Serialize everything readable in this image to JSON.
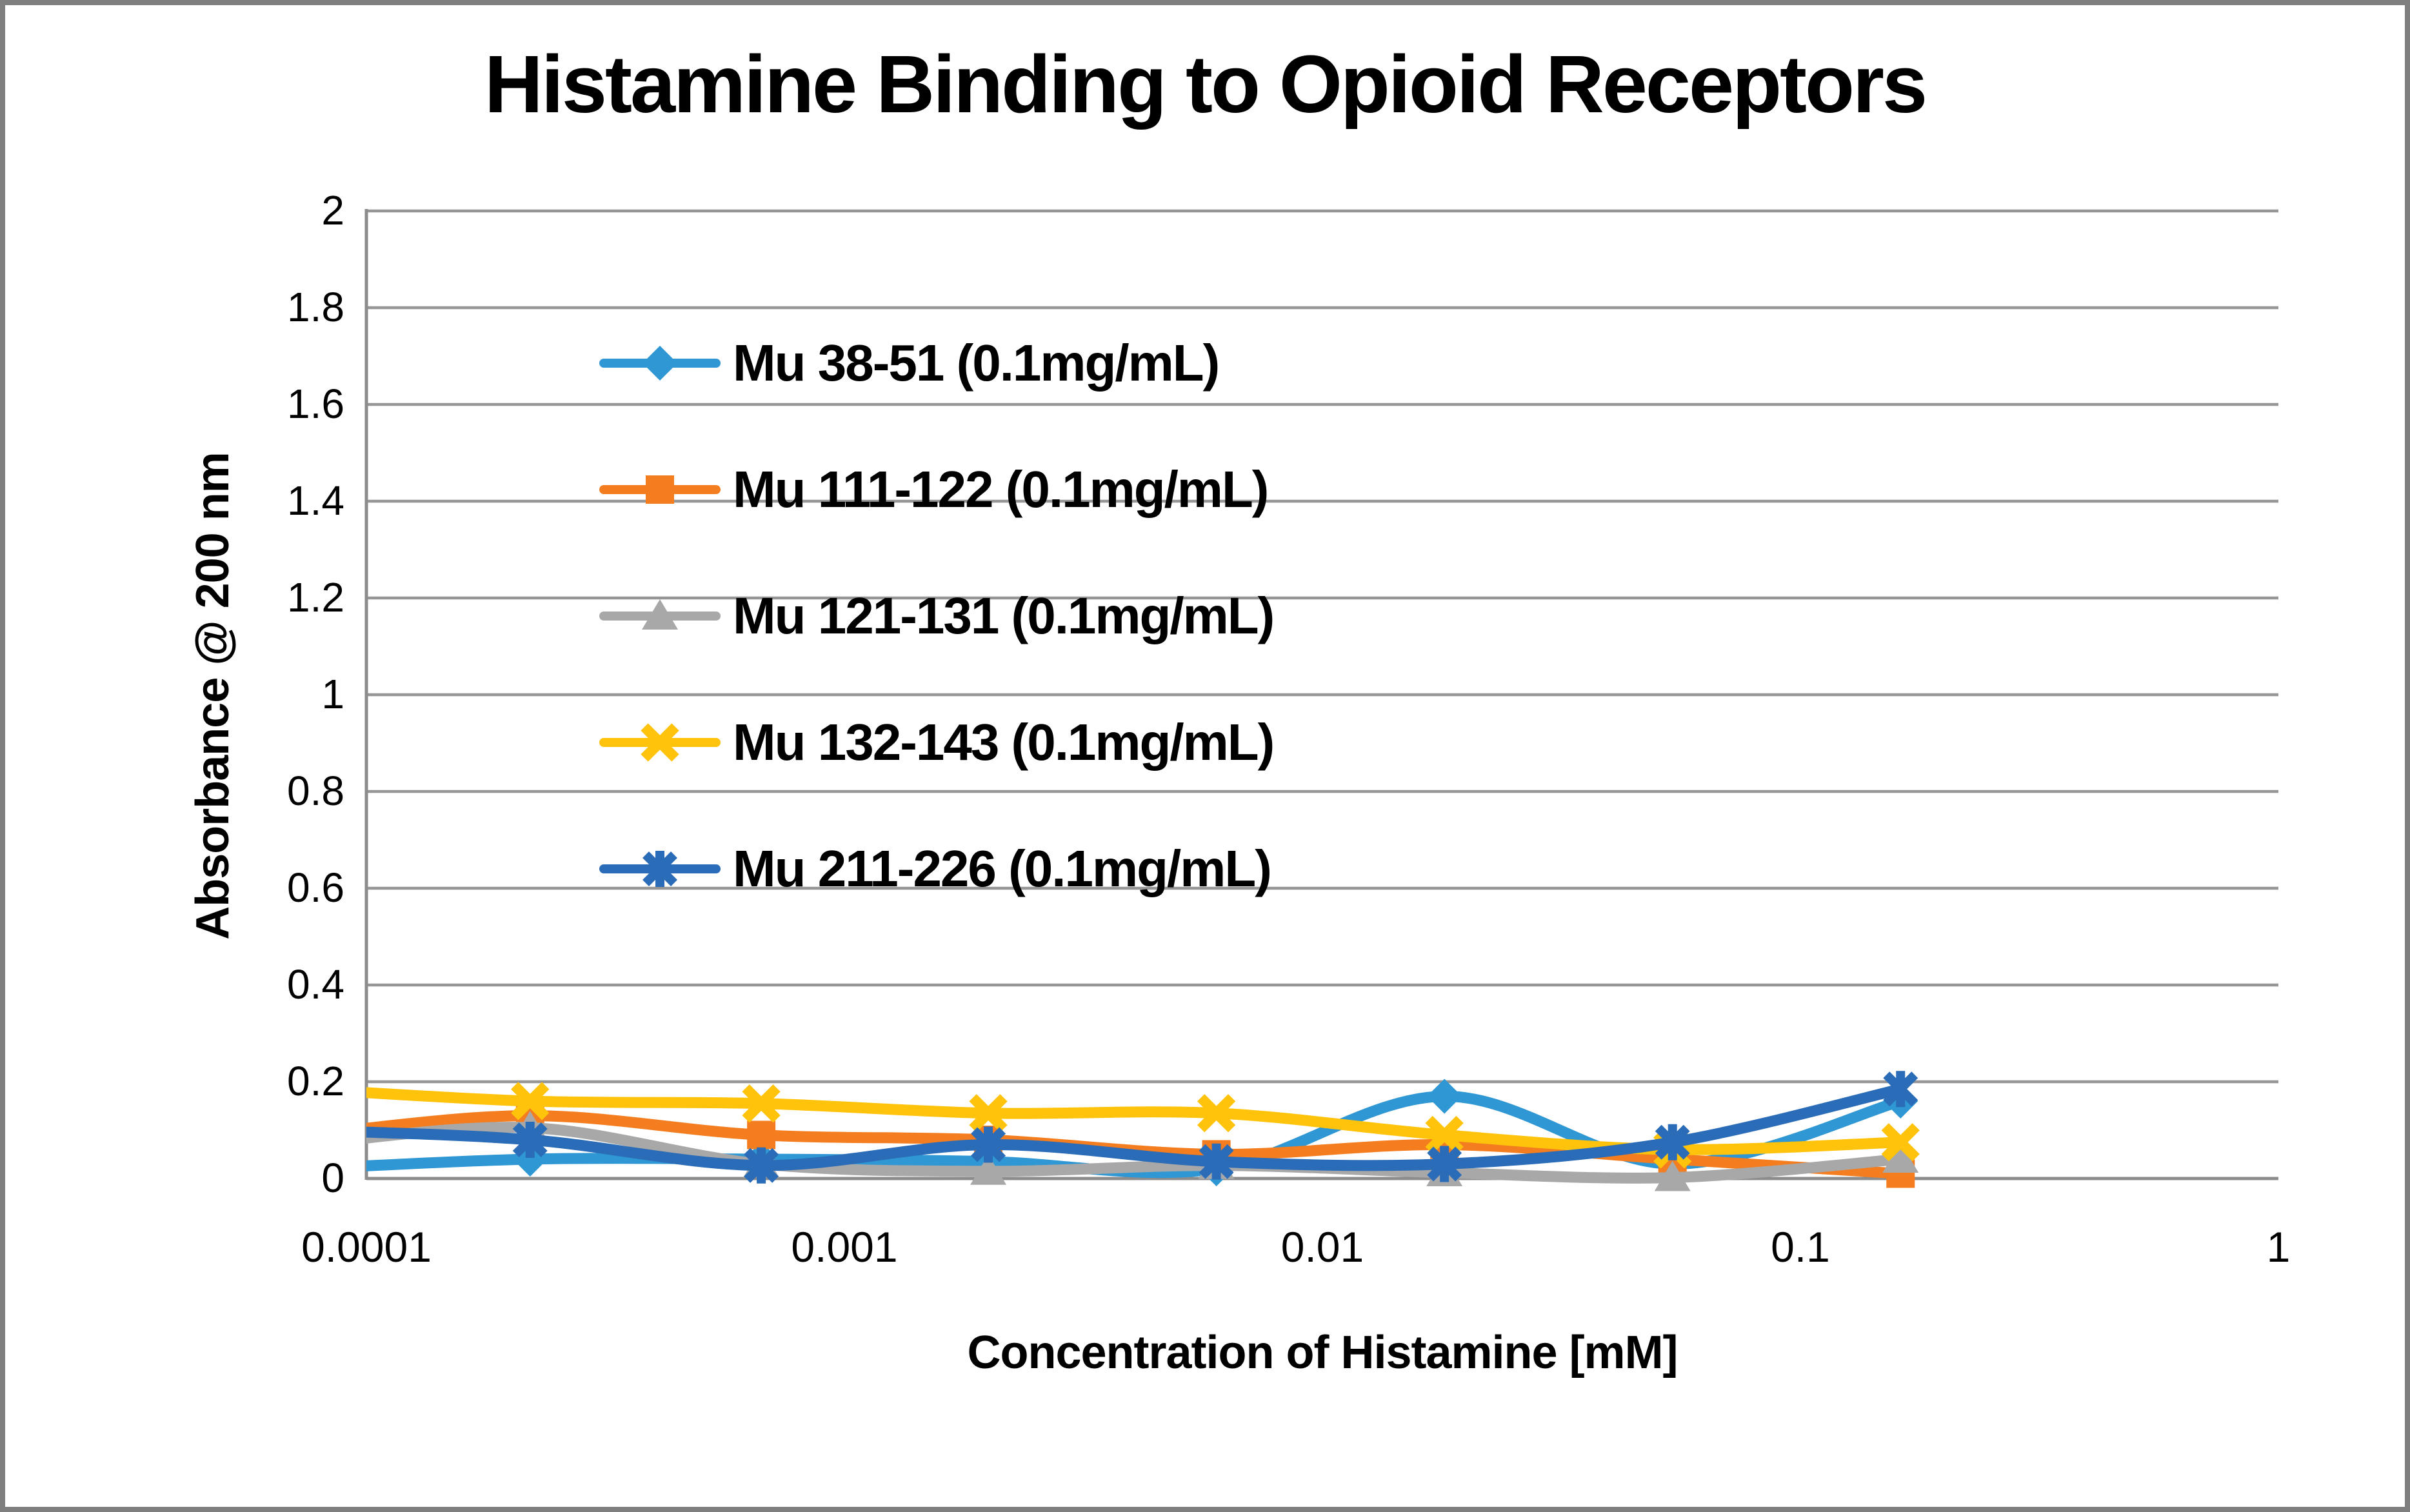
{
  "chart_data": {
    "type": "line",
    "title": "Histamine Binding to Opioid Receptors",
    "xlabel": "Concentration of Histamine [mM]",
    "ylabel": "Absorbance @ 200 nm",
    "x_scale": "log",
    "xlim": [
      0.0001,
      1
    ],
    "ylim": [
      0,
      2
    ],
    "grid": "horizontal",
    "legend_position": "inside-upper-left",
    "x_tick_labels": [
      "0.0001",
      "0.001",
      "0.01",
      "0.1",
      "1"
    ],
    "y_tick_labels": [
      "0",
      "0.2",
      "0.4",
      "0.6",
      "0.8",
      "1",
      "1.2",
      "1.4",
      "1.6",
      "1.8",
      "2"
    ],
    "x": [
      7.5e-05,
      0.00022,
      0.00067,
      0.002,
      0.006,
      0.018,
      0.054,
      0.162
    ],
    "series": [
      {
        "name": "Mu 38-51 (0.1mg/mL)",
        "marker": "diamond",
        "color": "#2E97D4",
        "values": [
          0.02,
          0.04,
          0.04,
          0.035,
          0.02,
          0.17,
          0.03,
          0.16
        ]
      },
      {
        "name": "Mu 111-122 (0.1mg/mL)",
        "marker": "square",
        "color": "#F47D20",
        "values": [
          0.09,
          0.13,
          0.09,
          0.08,
          0.05,
          0.07,
          0.04,
          0.01
        ]
      },
      {
        "name": "Mu 121-131 (0.1mg/mL)",
        "marker": "triangle",
        "color": "#A8A8A8",
        "values": [
          0.07,
          0.105,
          0.03,
          0.015,
          0.027,
          0.012,
          0.002,
          0.04
        ]
      },
      {
        "name": "Mu 132-143 (0.1mg/mL)",
        "marker": "x",
        "color": "#FFC30B",
        "values": [
          0.185,
          0.16,
          0.155,
          0.135,
          0.135,
          0.09,
          0.06,
          0.075
        ]
      },
      {
        "name": "Mu 211-226 (0.1mg/mL)",
        "marker": "asterisk",
        "color": "#2B6CB8",
        "values": [
          0.1,
          0.08,
          0.027,
          0.07,
          0.035,
          0.03,
          0.075,
          0.185
        ]
      }
    ],
    "colors": {
      "gridline": "#969696",
      "axis": "#8C8C8C",
      "figure_border": "#7F7F7F",
      "text": "#000000",
      "background": "#FFFFFF"
    }
  }
}
